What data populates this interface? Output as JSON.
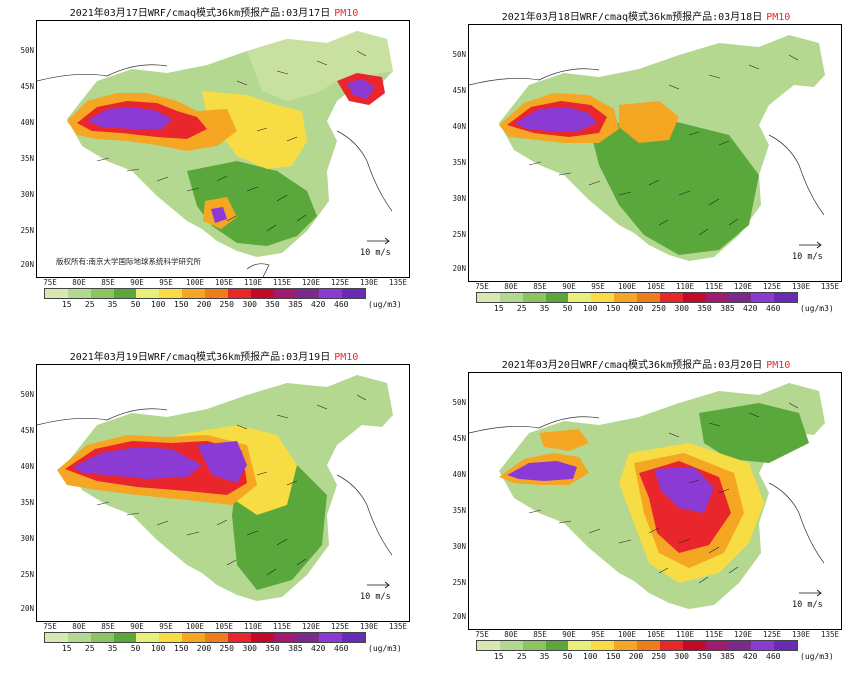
{
  "panels": [
    {
      "date_title": "2021年03月17日WRF/cmaq模式36km预报产品:03月17日",
      "pollutant": "PM10",
      "credit": "版权所有:南京大学国际地球系统科学研究所",
      "wind_ref": "10 m/s",
      "lon_labels": [
        "75E",
        "80E",
        "85E",
        "90E",
        "95E",
        "100E",
        "105E",
        "110E",
        "115E",
        "120E",
        "125E",
        "130E",
        "135E"
      ],
      "lat_labels": [
        "50N",
        "45N",
        "40N",
        "35N",
        "30N",
        "25N",
        "20N"
      ]
    },
    {
      "date_title": "2021年03月18日WRF/cmaq模式36km预报产品:03月18日",
      "pollutant": "PM10",
      "credit": "",
      "wind_ref": "10 m/s",
      "lon_labels": [
        "75E",
        "80E",
        "85E",
        "90E",
        "95E",
        "100E",
        "105E",
        "110E",
        "115E",
        "120E",
        "125E",
        "130E",
        "135E"
      ],
      "lat_labels": [
        "50N",
        "45N",
        "40N",
        "35N",
        "30N",
        "25N",
        "20N"
      ]
    },
    {
      "date_title": "2021年03月19日WRF/cmaq模式36km预报产品:03月19日",
      "pollutant": "PM10",
      "credit": "",
      "wind_ref": "10 m/s",
      "lon_labels": [
        "75E",
        "80E",
        "85E",
        "90E",
        "95E",
        "100E",
        "105E",
        "110E",
        "115E",
        "120E",
        "125E",
        "130E",
        "135E"
      ],
      "lat_labels": [
        "50N",
        "45N",
        "40N",
        "35N",
        "30N",
        "25N",
        "20N"
      ]
    },
    {
      "date_title": "2021年03月20日WRF/cmaq模式36km预报产品:03月20日",
      "pollutant": "PM10",
      "credit": "",
      "wind_ref": "10 m/s",
      "lon_labels": [
        "75E",
        "80E",
        "85E",
        "90E",
        "95E",
        "100E",
        "105E",
        "110E",
        "115E",
        "120E",
        "125E",
        "130E",
        "135E"
      ],
      "lat_labels": [
        "50N",
        "45N",
        "40N",
        "35N",
        "30N",
        "25N",
        "20N"
      ]
    }
  ],
  "legend": {
    "labels": [
      "15",
      "25",
      "35",
      "50",
      "100",
      "150",
      "200",
      "250",
      "300",
      "350",
      "385",
      "420",
      "460"
    ],
    "colors": [
      "#d8e8b4",
      "#b4d890",
      "#8cc464",
      "#5aa83c",
      "#e6f07a",
      "#f7dc44",
      "#f5a623",
      "#ed7d1d",
      "#e8262b",
      "#c40a2a",
      "#a01a6e",
      "#7a2a8e",
      "#8b3ad4",
      "#6a2ab8"
    ],
    "units": "(ug/m3)"
  },
  "colors": {
    "low_green": "#b4d890",
    "mid_green": "#5aa83c",
    "yellow": "#f7dc44",
    "orange": "#f5a623",
    "red": "#e8262b",
    "purple": "#8b3ad4"
  }
}
